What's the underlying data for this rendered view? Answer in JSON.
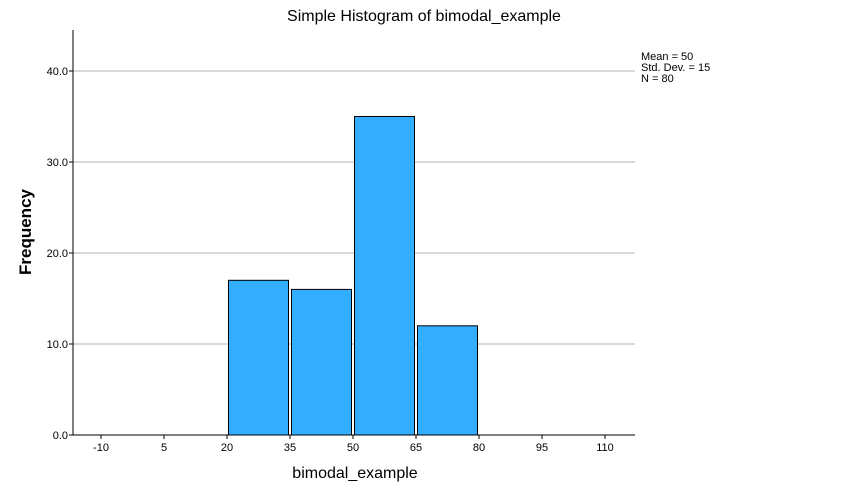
{
  "chart_data": {
    "type": "bar",
    "title": "Simple Histogram of bimodal_example",
    "xlabel": "bimodal_example",
    "ylabel": "Frequency",
    "x_ticks": [
      "-10",
      "5",
      "20",
      "35",
      "50",
      "65",
      "80",
      "95",
      "110"
    ],
    "x_range": [
      -10,
      110
    ],
    "y_ticks": [
      "0.0",
      "10.0",
      "20.0",
      "30.0",
      "40.0"
    ],
    "ylim": [
      0,
      40
    ],
    "bins": [
      {
        "start": 20,
        "end": 35,
        "value": 17
      },
      {
        "start": 35,
        "end": 50,
        "value": 16
      },
      {
        "start": 50,
        "end": 65,
        "value": 35
      },
      {
        "start": 65,
        "end": 80,
        "value": 12
      }
    ],
    "stats": {
      "mean": "Mean = 50",
      "std": "Std. Dev. = 15",
      "n": "N = 80"
    },
    "bar_color": "#33adff",
    "grid": true
  }
}
